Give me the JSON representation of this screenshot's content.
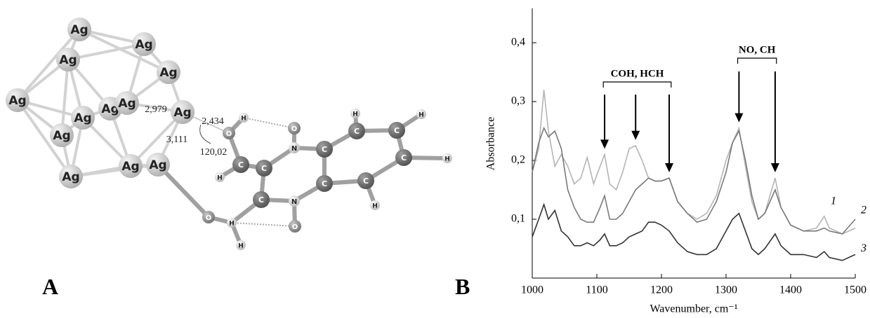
{
  "panels": {
    "a": "A",
    "b": "B"
  },
  "molecule": {
    "atoms": [
      "Ag",
      "Ag",
      "Ag",
      "Ag",
      "Ag",
      "Ag",
      "Ag",
      "Ag",
      "Ag",
      "Ag",
      "Ag",
      "Ag",
      "Ag",
      "O",
      "H",
      "C",
      "H",
      "C",
      "N",
      "O",
      "C",
      "C",
      "H",
      "C",
      "H",
      "C",
      "H",
      "C",
      "H",
      "C",
      "N",
      "O",
      "C",
      "O",
      "H",
      "H"
    ],
    "annotations": [
      "2,979",
      "2,434",
      "3,111",
      "120,02"
    ]
  },
  "chart_data": {
    "type": "line",
    "x_label": "Wavenumber, cm⁻¹",
    "y_label": "Absorbance",
    "x": [
      1000,
      1010,
      1018,
      1025,
      1035,
      1045,
      1055,
      1065,
      1075,
      1085,
      1095,
      1105,
      1112,
      1120,
      1130,
      1140,
      1150,
      1160,
      1170,
      1180,
      1190,
      1200,
      1212,
      1225,
      1240,
      1255,
      1270,
      1285,
      1300,
      1310,
      1320,
      1330,
      1340,
      1350,
      1360,
      1376,
      1385,
      1400,
      1420,
      1440,
      1452,
      1460,
      1480,
      1500
    ],
    "series": [
      {
        "name": "1",
        "color": "#b4b4b4",
        "values": [
          0.18,
          0.22,
          0.32,
          0.25,
          0.19,
          0.21,
          0.19,
          0.16,
          0.17,
          0.205,
          0.16,
          0.19,
          0.21,
          0.16,
          0.15,
          0.18,
          0.22,
          0.225,
          0.2,
          0.17,
          0.165,
          0.165,
          0.17,
          0.13,
          0.11,
          0.1,
          0.11,
          0.14,
          0.2,
          0.23,
          0.255,
          0.19,
          0.13,
          0.1,
          0.11,
          0.17,
          0.12,
          0.09,
          0.08,
          0.085,
          0.105,
          0.085,
          0.075,
          0.085
        ]
      },
      {
        "name": "2",
        "color": "#7a7a7a",
        "values": [
          0.18,
          0.23,
          0.255,
          0.24,
          0.25,
          0.22,
          0.15,
          0.12,
          0.1,
          0.095,
          0.095,
          0.12,
          0.14,
          0.1,
          0.1,
          0.11,
          0.13,
          0.15,
          0.16,
          0.17,
          0.165,
          0.165,
          0.17,
          0.13,
          0.11,
          0.095,
          0.1,
          0.13,
          0.18,
          0.23,
          0.25,
          0.2,
          0.14,
          0.1,
          0.11,
          0.15,
          0.12,
          0.09,
          0.08,
          0.08,
          0.085,
          0.08,
          0.075,
          0.1
        ]
      },
      {
        "name": "3",
        "color": "#333333",
        "values": [
          0.07,
          0.1,
          0.125,
          0.1,
          0.115,
          0.08,
          0.07,
          0.055,
          0.055,
          0.06,
          0.055,
          0.065,
          0.075,
          0.055,
          0.055,
          0.06,
          0.07,
          0.075,
          0.08,
          0.095,
          0.095,
          0.09,
          0.08,
          0.06,
          0.045,
          0.04,
          0.04,
          0.05,
          0.08,
          0.1,
          0.11,
          0.08,
          0.05,
          0.04,
          0.05,
          0.075,
          0.055,
          0.04,
          0.04,
          0.035,
          0.045,
          0.035,
          0.03,
          0.04
        ]
      }
    ],
    "xlim": [
      1000,
      1500
    ],
    "xticks": [
      1000,
      1100,
      1200,
      1300,
      1400,
      1500
    ],
    "ylim": [
      0,
      0.45
    ],
    "yticks": [
      {
        "value": 0.1,
        "label": "0,1"
      },
      {
        "value": 0.2,
        "label": "0,2"
      },
      {
        "value": 0.3,
        "label": "0,3"
      },
      {
        "value": 0.4,
        "label": "0,4"
      }
    ],
    "brackets": [
      {
        "text": "COH, HCH",
        "from": 1110,
        "to": 1215
      },
      {
        "text": "NO, CH",
        "from": 1318,
        "to": 1378
      }
    ],
    "arrows": [
      {
        "x": 1112,
        "y": 0.215
      },
      {
        "x": 1160,
        "y": 0.23
      },
      {
        "x": 1212,
        "y": 0.175
      },
      {
        "x": 1320,
        "y": 0.26
      },
      {
        "x": 1376,
        "y": 0.175
      }
    ]
  }
}
